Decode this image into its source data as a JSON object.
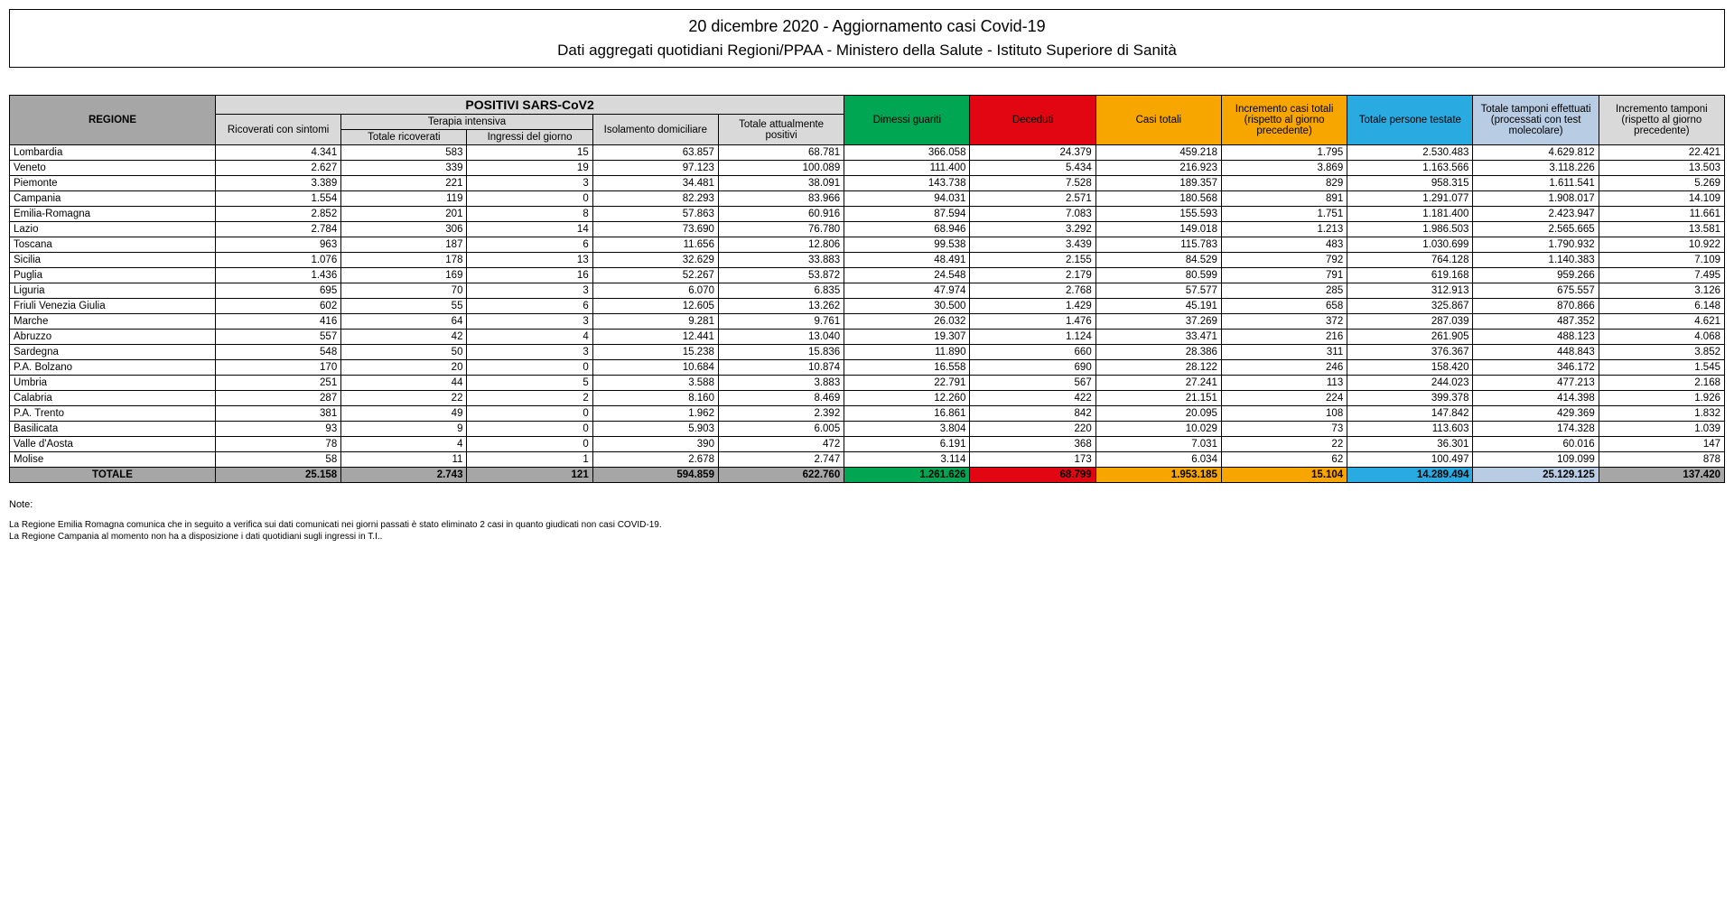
{
  "header": {
    "line1": "20 dicembre 2020 - Aggiornamento casi Covid-19",
    "line2": "Dati aggregati quotidiani Regioni/PPAA - Ministero della Salute - Istituto Superiore di Sanità"
  },
  "columns": {
    "regione": "REGIONE",
    "positivi_group": "POSITIVI SARS-CoV2",
    "ricoverati": "Ricoverati con sintomi",
    "terapia_group": "Terapia intensiva",
    "terapia_totale": "Totale ricoverati",
    "terapia_ingressi": "Ingressi del giorno",
    "isolamento": "Isolamento domiciliare",
    "totale_positivi": "Totale attualmente positivi",
    "dimessi": "Dimessi guariti",
    "deceduti": "Deceduti",
    "casi_totali": "Casi totali",
    "incremento_casi": "Incremento casi totali (rispetto al giorno precedente)",
    "persone_testate": "Totale persone testate",
    "tamponi": "Totale tamponi effettuati (processati con test molecolare)",
    "incremento_tamponi": "Incremento tamponi (rispetto al giorno precedente)"
  },
  "rows": [
    {
      "r": "Lombardia",
      "v": [
        "4.341",
        "583",
        "15",
        "63.857",
        "68.781",
        "366.058",
        "24.379",
        "459.218",
        "1.795",
        "2.530.483",
        "4.629.812",
        "22.421"
      ]
    },
    {
      "r": "Veneto",
      "v": [
        "2.627",
        "339",
        "19",
        "97.123",
        "100.089",
        "111.400",
        "5.434",
        "216.923",
        "3.869",
        "1.163.566",
        "3.118.226",
        "13.503"
      ]
    },
    {
      "r": "Piemonte",
      "v": [
        "3.389",
        "221",
        "3",
        "34.481",
        "38.091",
        "143.738",
        "7.528",
        "189.357",
        "829",
        "958.315",
        "1.611.541",
        "5.269"
      ]
    },
    {
      "r": "Campania",
      "v": [
        "1.554",
        "119",
        "0",
        "82.293",
        "83.966",
        "94.031",
        "2.571",
        "180.568",
        "891",
        "1.291.077",
        "1.908.017",
        "14.109"
      ]
    },
    {
      "r": "Emilia-Romagna",
      "v": [
        "2.852",
        "201",
        "8",
        "57.863",
        "60.916",
        "87.594",
        "7.083",
        "155.593",
        "1.751",
        "1.181.400",
        "2.423.947",
        "11.661"
      ]
    },
    {
      "r": "Lazio",
      "v": [
        "2.784",
        "306",
        "14",
        "73.690",
        "76.780",
        "68.946",
        "3.292",
        "149.018",
        "1.213",
        "1.986.503",
        "2.565.665",
        "13.581"
      ]
    },
    {
      "r": "Toscana",
      "v": [
        "963",
        "187",
        "6",
        "11.656",
        "12.806",
        "99.538",
        "3.439",
        "115.783",
        "483",
        "1.030.699",
        "1.790.932",
        "10.922"
      ]
    },
    {
      "r": "Sicilia",
      "v": [
        "1.076",
        "178",
        "13",
        "32.629",
        "33.883",
        "48.491",
        "2.155",
        "84.529",
        "792",
        "764.128",
        "1.140.383",
        "7.109"
      ]
    },
    {
      "r": "Puglia",
      "v": [
        "1.436",
        "169",
        "16",
        "52.267",
        "53.872",
        "24.548",
        "2.179",
        "80.599",
        "791",
        "619.168",
        "959.266",
        "7.495"
      ]
    },
    {
      "r": "Liguria",
      "v": [
        "695",
        "70",
        "3",
        "6.070",
        "6.835",
        "47.974",
        "2.768",
        "57.577",
        "285",
        "312.913",
        "675.557",
        "3.126"
      ]
    },
    {
      "r": "Friuli Venezia Giulia",
      "v": [
        "602",
        "55",
        "6",
        "12.605",
        "13.262",
        "30.500",
        "1.429",
        "45.191",
        "658",
        "325.867",
        "870.866",
        "6.148"
      ]
    },
    {
      "r": "Marche",
      "v": [
        "416",
        "64",
        "3",
        "9.281",
        "9.761",
        "26.032",
        "1.476",
        "37.269",
        "372",
        "287.039",
        "487.352",
        "4.621"
      ]
    },
    {
      "r": "Abruzzo",
      "v": [
        "557",
        "42",
        "4",
        "12.441",
        "13.040",
        "19.307",
        "1.124",
        "33.471",
        "216",
        "261.905",
        "488.123",
        "4.068"
      ]
    },
    {
      "r": "Sardegna",
      "v": [
        "548",
        "50",
        "3",
        "15.238",
        "15.836",
        "11.890",
        "660",
        "28.386",
        "311",
        "376.367",
        "448.843",
        "3.852"
      ]
    },
    {
      "r": "P.A. Bolzano",
      "v": [
        "170",
        "20",
        "0",
        "10.684",
        "10.874",
        "16.558",
        "690",
        "28.122",
        "246",
        "158.420",
        "346.172",
        "1.545"
      ]
    },
    {
      "r": "Umbria",
      "v": [
        "251",
        "44",
        "5",
        "3.588",
        "3.883",
        "22.791",
        "567",
        "27.241",
        "113",
        "244.023",
        "477.213",
        "2.168"
      ]
    },
    {
      "r": "Calabria",
      "v": [
        "287",
        "22",
        "2",
        "8.160",
        "8.469",
        "12.260",
        "422",
        "21.151",
        "224",
        "399.378",
        "414.398",
        "1.926"
      ]
    },
    {
      "r": "P.A. Trento",
      "v": [
        "381",
        "49",
        "0",
        "1.962",
        "2.392",
        "16.861",
        "842",
        "20.095",
        "108",
        "147.842",
        "429.369",
        "1.832"
      ]
    },
    {
      "r": "Basilicata",
      "v": [
        "93",
        "9",
        "0",
        "5.903",
        "6.005",
        "3.804",
        "220",
        "10.029",
        "73",
        "113.603",
        "174.328",
        "1.039"
      ]
    },
    {
      "r": "Valle d'Aosta",
      "v": [
        "78",
        "4",
        "0",
        "390",
        "472",
        "6.191",
        "368",
        "7.031",
        "22",
        "36.301",
        "60.016",
        "147"
      ]
    },
    {
      "r": "Molise",
      "v": [
        "58",
        "11",
        "1",
        "2.678",
        "2.747",
        "3.114",
        "173",
        "6.034",
        "62",
        "100.497",
        "109.099",
        "878"
      ]
    }
  ],
  "total": {
    "label": "TOTALE",
    "v": [
      "25.158",
      "2.743",
      "121",
      "594.859",
      "622.760",
      "1.261.626",
      "68.799",
      "1.953.185",
      "15.104",
      "14.289.494",
      "25.129.125",
      "137.420"
    ]
  },
  "notes": {
    "title": "Note:",
    "lines": [
      "La Regione Emilia Romagna comunica che in seguito a verifica sui dati comunicati nei giorni passati è stato eliminato 2 casi in quanto giudicati non casi COVID-19.",
      "La Regione Campania al momento non ha a disposizione i dati quotidiani sugli ingressi in T.I.."
    ]
  },
  "style": {
    "colors": {
      "grey_dark": "#a6a6a6",
      "grey_light": "#d9d9d9",
      "green": "#00a651",
      "red": "#e20613",
      "orange": "#f7a600",
      "cyan": "#29abe2",
      "blue_light": "#b8cce4",
      "border": "#000000",
      "bg": "#ffffff"
    },
    "fonts": {
      "body": "Arial",
      "size_header": 18,
      "size_subheader": 17,
      "size_cell": 11.5,
      "size_notes": 10
    }
  }
}
